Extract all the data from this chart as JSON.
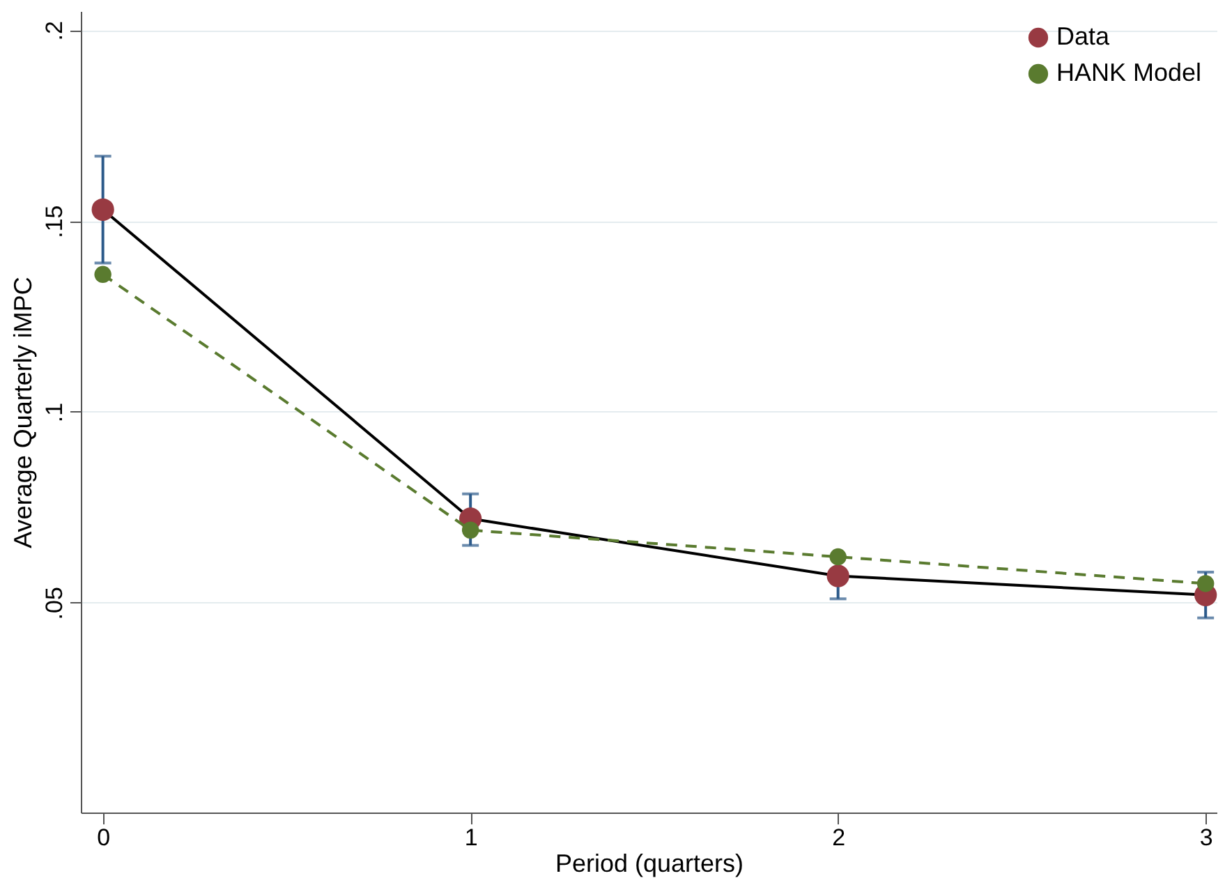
{
  "chart_data": {
    "type": "line",
    "xlabel": "Period (quarters)",
    "ylabel": "Average Quarterly iMPC",
    "x": [
      0,
      1,
      2,
      3
    ],
    "series": [
      {
        "name": "Data",
        "color": "#000000",
        "colors": [
          "#983a42",
          "#983a42",
          "#983a42",
          "#983a42"
        ],
        "line_style": "solid",
        "marker": "circle",
        "values": [
          0.153,
          0.072,
          0.057,
          0.052
        ],
        "errors": [
          [
            0.139,
            0.167
          ],
          [
            0.065,
            0.0785
          ],
          [
            0.051,
            0.057
          ],
          [
            0.046,
            0.058
          ]
        ]
      },
      {
        "name": "HANK Model",
        "color": "#5a7b2f",
        "line_style": "dashed",
        "marker": "circle",
        "values": [
          0.136,
          0.069,
          0.062,
          0.055
        ]
      }
    ],
    "xlim": [
      -0.06,
      3.03
    ],
    "xticks": [
      0,
      1,
      2,
      3
    ],
    "ylim": [
      -0.005,
      0.205
    ],
    "yticks": [
      {
        "value": 0.05,
        "label": ".05"
      },
      {
        "value": 0.1,
        "label": ".1"
      },
      {
        "value": 0.15,
        "label": ".15"
      },
      {
        "value": 0.2,
        "label": ".2"
      }
    ],
    "grid": "y",
    "legend": "top right"
  }
}
